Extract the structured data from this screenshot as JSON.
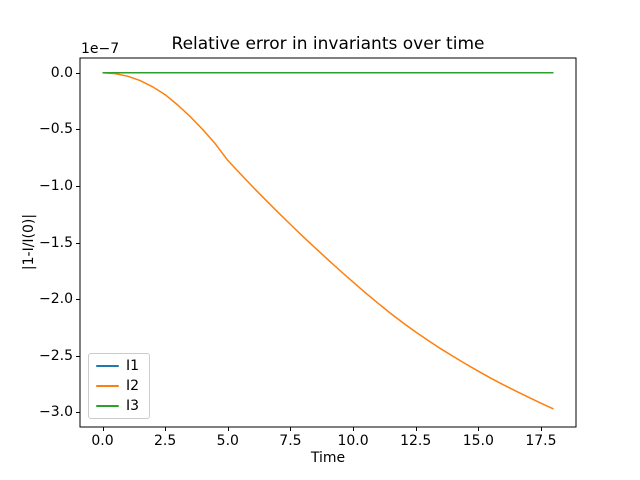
{
  "figure": {
    "background": "#ffffff",
    "axis_color": "#000000"
  },
  "chart_data": {
    "type": "line",
    "title": "Relative error in invariants over time",
    "xlabel": "Time",
    "ylabel": "|1-I/I(0)|",
    "y_scale_offset_text": "1e−7",
    "y_value_units": "1e-7",
    "xlim": [
      -0.9,
      18.9
    ],
    "ylim": [
      -3.13,
      0.13
    ],
    "grid": false,
    "xticks": [
      0,
      2.5,
      5,
      7.5,
      10,
      12.5,
      15,
      17.5
    ],
    "xtick_labels": [
      "0.0",
      "2.5",
      "5.0",
      "7.5",
      "10.0",
      "12.5",
      "15.0",
      "17.5"
    ],
    "yticks": [
      0,
      -0.5,
      -1,
      -1.5,
      -2,
      -2.5,
      -3
    ],
    "ytick_labels": [
      "0.0",
      "−0.5",
      "−1.0",
      "−1.5",
      "−2.0",
      "−2.5",
      "−3.0"
    ],
    "legend": {
      "location": "lower left",
      "border_color": "#cccccc",
      "entries": [
        "I1",
        "I2",
        "I3"
      ]
    },
    "series": [
      {
        "name": "I1",
        "color": "#1f77b4",
        "x": [
          0,
          18
        ],
        "y": [
          0,
          0
        ]
      },
      {
        "name": "I2",
        "color": "#ff7f0e",
        "x": [
          0,
          0.5,
          1,
          1.5,
          2,
          2.5,
          3,
          3.5,
          4,
          4.5,
          5,
          5.5,
          6,
          6.5,
          7,
          7.5,
          8,
          8.5,
          9,
          9.5,
          10,
          10.5,
          11,
          11.5,
          12,
          12.5,
          13,
          13.5,
          14,
          14.5,
          15,
          15.5,
          16,
          16.5,
          17,
          17.5,
          18
        ],
        "y": [
          0,
          -0.008,
          -0.031,
          -0.07,
          -0.124,
          -0.194,
          -0.285,
          -0.388,
          -0.502,
          -0.628,
          -0.775,
          -0.893,
          -1.009,
          -1.122,
          -1.232,
          -1.34,
          -1.446,
          -1.55,
          -1.652,
          -1.752,
          -1.85,
          -1.945,
          -2.037,
          -2.126,
          -2.211,
          -2.291,
          -2.366,
          -2.438,
          -2.507,
          -2.573,
          -2.637,
          -2.699,
          -2.757,
          -2.813,
          -2.867,
          -2.92,
          -2.97
        ]
      },
      {
        "name": "I3",
        "color": "#2ca02c",
        "x": [
          0,
          18
        ],
        "y": [
          0,
          0
        ]
      }
    ]
  }
}
